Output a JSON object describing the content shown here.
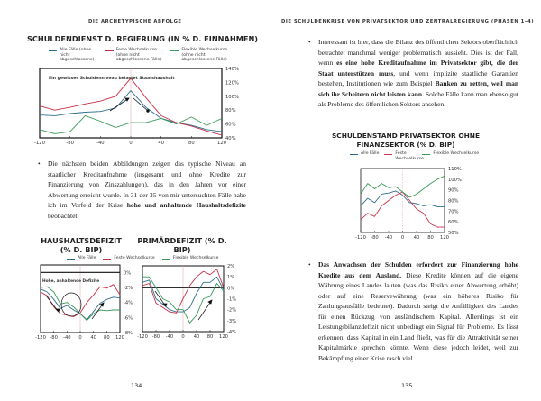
{
  "left_page": {
    "header": "DIE ARCHETYPISCHE ABFOLGE",
    "page_number": "134",
    "paragraph": {
      "text_plain": "Die nächsten beiden Abbildungen zeigen das typische Niveau an staatlicher Kreditaufnahme (insgesamt und ohne Kredite zur Finanzierung von Zinszahlungen), das in den Jahren vor einer Abwertung erreicht wurde. In 31 der 35 von mir untersuchten Fälle habe ich im Vorfeld der Krise ",
      "text_bold": "hohe und anhaltende Haushaltsdefizite",
      "text_end": " beobachtet."
    }
  },
  "right_page": {
    "header": "DIE SCHULDENKRISE VON PRIVATSEKTOR UND ZENTRALREGIERUNG (PHASEN 1–4)",
    "page_number": "135",
    "paragraph1": {
      "text_a": "Interessant ist hier, dass die Bilanz des öffentlichen Sektors oberflächlich betrachtet manchmal weniger problematisch aussieht. Dies ist der Fall, wenn ",
      "text_bold": "es eine hohe Kreditaufnahme im Privatsektor gibt, die der Staat unterstützen muss",
      "text_b": ", und wenn implizite staatliche Garantien bestehen, Institutionen wie zum Beispiel ",
      "text_bold2": "Banken zu retten, weil man sich ihr Scheitern nicht leisten kann.",
      "text_c": " Solche Fälle kann man ebenso gut als Probleme des öffentlichen Sektors ansehen."
    },
    "paragraph2": {
      "text_bold": "Das Anwachsen der Schulden erfordert zur Finanzierung hohe Kredite aus dem Ausland.",
      "text": " Diese Kredite können auf die eigene Währung eines Landes lauten (was das Risiko einer Abwertung erhöht) oder auf eine Reservewährung (was ein höheres Risiko für Zahlungsausfälle bedeutet). Dadurch steigt die Anfälligkeit des Landes für einen Rückzug von ausländischem Kapital. Allerdings ist ein Leistungsbilanzdefizit nicht unbedingt ein Signal für Probleme. Es lässt erkennen, dass Kapital in ein Land fließt, was für die Attraktivität seiner Kapitalmärkte sprechen könnte. Wenn diese jedoch leidet, weil zur Bekämpfung einer Krise rasch viel"
    }
  },
  "colors": {
    "all": "#2f6f8f",
    "fixed": "#c8324a",
    "flexible": "#3a9a5a"
  },
  "chart_data": [
    {
      "id": "schuldendienst",
      "type": "line",
      "title": "SCHULDENDIENST D. REGIERUNG (IN % D. EINNAHMEN)",
      "legend": [
        "Alle Fälle (ohne nicht abgeschlossene)",
        "Feste Wechselkurse (ohne nicht abgeschlossene Fälle)",
        "Flexible Wechselkurse (ohne nicht abgeschlossene Fälle)"
      ],
      "annotation": "Ein gewisses Schuldenniveau belastet Staatshaushalt",
      "x": [
        -120,
        -100,
        -80,
        -60,
        -40,
        -20,
        0,
        20,
        40,
        60,
        80,
        100,
        120
      ],
      "xticks": [
        -120,
        -80,
        -40,
        0,
        40,
        80,
        120
      ],
      "xtick_labels": [
        "-120",
        "-80",
        "-40",
        "0",
        "40",
        "80",
        "120"
      ],
      "ylim": [
        40,
        140
      ],
      "yticks": [
        140,
        120,
        100,
        80,
        60,
        40
      ],
      "ytick_labels": [
        "140%",
        "120%",
        "100%",
        "80%",
        "60%",
        "40%"
      ],
      "series": [
        {
          "name": "Alle Fälle",
          "color_key": "all",
          "values": [
            73,
            72,
            75,
            77,
            78,
            83,
            108,
            84,
            68,
            62,
            58,
            52,
            49
          ]
        },
        {
          "name": "Feste Wechselkurse",
          "color_key": "fixed",
          "values": [
            86,
            80,
            84,
            89,
            93,
            100,
            126,
            98,
            72,
            62,
            57,
            50,
            44
          ]
        },
        {
          "name": "Flexible Wechselkurse",
          "color_key": "flexible",
          "values": [
            52,
            46,
            49,
            72,
            64,
            55,
            62,
            62,
            68,
            60,
            70,
            58,
            68
          ]
        }
      ]
    },
    {
      "id": "haushaltsdefizit",
      "type": "line",
      "title": "HAUSHALTSDEFIZIT (% D. BIP)",
      "annotation": "Hohe, anhaltende Defizite",
      "x": [
        -120,
        -100,
        -80,
        -60,
        -40,
        -20,
        0,
        20,
        40,
        60,
        80,
        100,
        120
      ],
      "xticks": [
        -120,
        -80,
        -40,
        0,
        40,
        80,
        120
      ],
      "xtick_labels": [
        "-120",
        "-80",
        "-40",
        "0",
        "40",
        "80",
        "120"
      ],
      "ylim": [
        -8,
        1
      ],
      "yticks": [
        0,
        -2,
        -4,
        -6,
        -8
      ],
      "ytick_labels": [
        "0%",
        "-2%",
        "-4%",
        "-6%",
        "-8%"
      ],
      "series": [
        {
          "name": "Alle Fälle",
          "color_key": "all",
          "values": [
            -2.2,
            -2.6,
            -3.6,
            -4.8,
            -4.4,
            -5,
            -5.5,
            -6.3,
            -5.2,
            -4.1,
            -3.6,
            -3.3,
            -3.4
          ]
        },
        {
          "name": "Feste Wechselkurse",
          "color_key": "fixed",
          "values": [
            -2.6,
            -3.1,
            -4.6,
            -5.5,
            -5.7,
            -5.9,
            -5.4,
            -4,
            -3,
            -1.9,
            -2.1,
            -1.6,
            -3
          ]
        },
        {
          "name": "Flexible Wechselkurse",
          "color_key": "flexible",
          "values": [
            -2,
            -1.9,
            -2.6,
            -4.2,
            -4,
            -4.6,
            -5.5,
            -6.4,
            -5.5,
            -5,
            -5.1,
            -5,
            -5
          ]
        }
      ]
    },
    {
      "id": "primaerdefizit",
      "type": "line",
      "title": "PRIMÄRDEFIZIT (% D. BIP)",
      "x": [
        -120,
        -100,
        -80,
        -60,
        -40,
        -20,
        0,
        20,
        40,
        60,
        80,
        100,
        120
      ],
      "xticks": [
        -120,
        -80,
        -40,
        0,
        40,
        80,
        120
      ],
      "xtick_labels": [
        "-120",
        "-80",
        "-40",
        "0",
        "40",
        "80",
        "120"
      ],
      "ylim": [
        -4,
        2
      ],
      "yticks": [
        2,
        1,
        0,
        -1,
        -2,
        -3,
        -4
      ],
      "ytick_labels": [
        "2%",
        "1%",
        "0%",
        "-1%",
        "-2%",
        "-3%",
        "-4%"
      ],
      "series": [
        {
          "name": "Alle Fälle",
          "color_key": "all",
          "values": [
            0.5,
            0.7,
            -1,
            -1.5,
            -2,
            -2.2,
            -2.2,
            -1.8,
            -0.5,
            0.5,
            0.5,
            1,
            -0.2
          ]
        },
        {
          "name": "Feste Wechselkurse",
          "color_key": "fixed",
          "values": [
            0.2,
            0.4,
            -1.4,
            -1.8,
            -2.2,
            -2.3,
            -1,
            0.2,
            1,
            1.5,
            1.2,
            1.7,
            0
          ]
        },
        {
          "name": "Flexible Wechselkurse",
          "color_key": "flexible",
          "values": [
            1,
            1,
            0,
            -1,
            -1.3,
            -2,
            -2,
            -3.2,
            -2.5,
            -1,
            -0.8,
            0.4,
            -0.3
          ]
        }
      ],
      "shared_legend": [
        "Alle Fälle",
        "Feste Wechselkurse",
        "Flexible Wechselkurse"
      ]
    },
    {
      "id": "privatsektor",
      "type": "line",
      "title": "SCHULDENSTAND PRIVATSEKTOR OHNE FINANZSEKTOR (% D. BIP)",
      "legend": [
        "Alle Fälle",
        "Feste Wechselkurse",
        "Flexible Wechselkurse"
      ],
      "x": [
        -120,
        -100,
        -80,
        -60,
        -40,
        -20,
        0,
        20,
        40,
        60,
        80,
        100,
        120
      ],
      "xticks": [
        -120,
        -80,
        -40,
        0,
        40,
        80,
        120
      ],
      "xtick_labels": [
        "-120",
        "-80",
        "-40",
        "0",
        "40",
        "80",
        "120"
      ],
      "ylim": [
        50,
        110
      ],
      "yticks": [
        110,
        100,
        90,
        80,
        70,
        60,
        50
      ],
      "ytick_labels": [
        "110%",
        "100%",
        "90%",
        "80%",
        "70%",
        "60%",
        "50%"
      ],
      "series": [
        {
          "name": "Alle Fälle",
          "color_key": "all",
          "values": [
            75,
            82,
            78,
            86,
            87,
            89,
            85,
            78,
            77,
            75,
            76,
            74,
            74
          ]
        },
        {
          "name": "Feste Wechselkurse",
          "color_key": "fixed",
          "values": [
            62,
            68,
            65,
            75,
            80,
            85,
            88,
            80,
            72,
            68,
            58,
            55,
            55
          ]
        },
        {
          "name": "Flexible Wechselkurse",
          "color_key": "flexible",
          "values": [
            86,
            96,
            91,
            96,
            92,
            93,
            88,
            83,
            86,
            91,
            96,
            100,
            103
          ]
        }
      ]
    }
  ]
}
